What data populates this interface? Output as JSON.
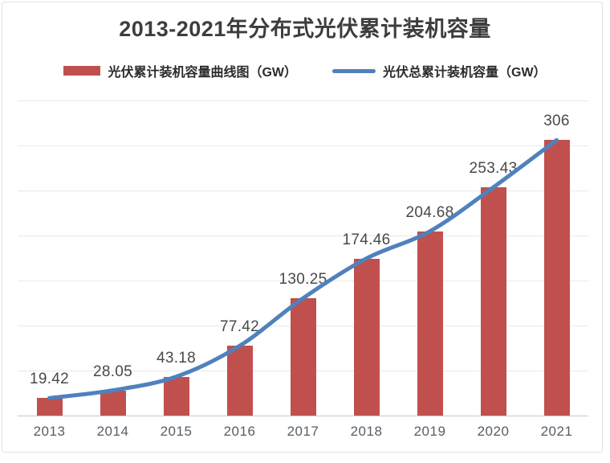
{
  "chart_data": {
    "type": "bar",
    "title": "2013-2021年分布式光伏累计装机容量",
    "categories": [
      "2013",
      "2014",
      "2015",
      "2016",
      "2017",
      "2018",
      "2019",
      "2020",
      "2021"
    ],
    "series": [
      {
        "name": "光伏累计装机容量曲线图（GW）",
        "type": "bar",
        "color": "#c0504d",
        "values": [
          19.42,
          28.05,
          43.18,
          77.42,
          130.25,
          174.46,
          204.68,
          253.43,
          306
        ]
      },
      {
        "name": "光伏总累计装机容量（GW）",
        "type": "line",
        "color": "#4f81bd",
        "values": [
          19.42,
          28.05,
          43.18,
          77.42,
          130.25,
          174.46,
          204.68,
          253.43,
          306
        ]
      }
    ],
    "data_labels": [
      "19.42",
      "28.05",
      "43.18",
      "77.42",
      "130.25",
      "174.46",
      "204.68",
      "253.43",
      "306"
    ],
    "xlabel": "",
    "ylabel": "",
    "ylim": [
      0,
      350
    ],
    "grid_step": 50,
    "grid": true,
    "y_tick_labels_shown": false,
    "legend_position": "top"
  },
  "colors": {
    "bar": "#c0504d",
    "line": "#4f81bd",
    "gridline": "#e9e9e9",
    "axis_line": "#c9c9c9",
    "frame_border": "#e3e3e3",
    "title_text": "#3d3d3d",
    "data_label_text": "#494949",
    "axis_label_text": "#575d66"
  }
}
